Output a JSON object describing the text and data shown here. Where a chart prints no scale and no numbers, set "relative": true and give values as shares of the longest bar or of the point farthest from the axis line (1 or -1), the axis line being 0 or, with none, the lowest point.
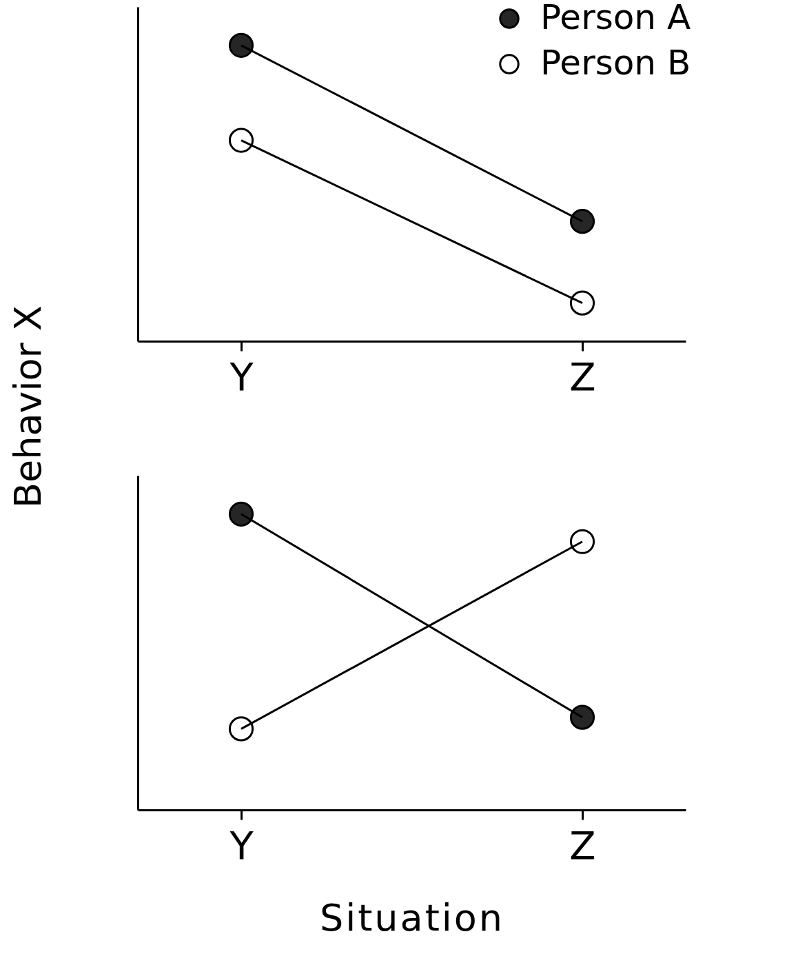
{
  "chart_data": [
    {
      "type": "line",
      "relative": true,
      "ylabel": "Behavior X",
      "categories": [
        "Y",
        "Z"
      ],
      "marker": "circle",
      "legend": "top right",
      "series": [
        {
          "name": "Person A",
          "color": "#262626",
          "values": [
            1,
            0.405
          ]
        },
        {
          "name": "Person B",
          "color": "#ffffff",
          "values": [
            0.679,
            0.129
          ]
        }
      ]
    },
    {
      "type": "line",
      "relative": true,
      "xlabel": "Situation",
      "categories": [
        "Y",
        "Z"
      ],
      "marker": "circle",
      "series": [
        {
          "color": "#262626",
          "values": [
            1,
            0.313
          ]
        },
        {
          "color": "#ffffff",
          "values": [
            0.274,
            0.907
          ]
        }
      ]
    }
  ]
}
